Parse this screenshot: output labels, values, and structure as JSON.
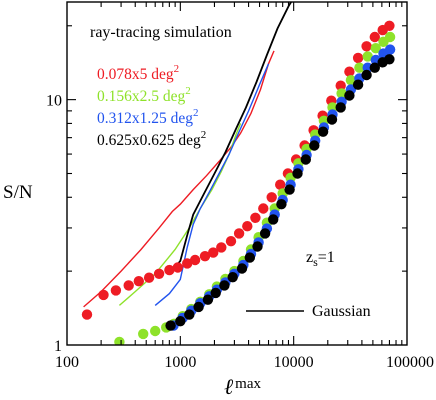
{
  "chart_data": {
    "type": "scatter",
    "title": "ray-tracing simulation",
    "ylabel": "S/N",
    "xlabel": {
      "main": "ℓ",
      "sub": "max"
    },
    "xscale": "log",
    "yscale": "log",
    "xlim": [
      100,
      100000
    ],
    "ylim": [
      1,
      25
    ],
    "x_tick_labels": [
      {
        "value": 100,
        "label": "100"
      },
      {
        "value": 1000,
        "label": "1000"
      },
      {
        "value": 10000,
        "label": "10000"
      },
      {
        "value": 100000,
        "label": "100000"
      }
    ],
    "y_tick_labels": [
      {
        "value": 1,
        "label": "1"
      },
      {
        "value": 10,
        "label": "10"
      }
    ],
    "grid": false,
    "legend_position": "top-left",
    "annotation": {
      "main": "z",
      "sub": "s",
      "rest": "=1"
    },
    "gaussian_legend_label": "Gaussian",
    "series": [
      {
        "name": "0.078x5 deg",
        "name_sup": "2",
        "color": "#ee1c24",
        "points": [
          [
            150,
            1.33
          ],
          [
            210,
            1.6
          ],
          [
            270,
            1.67
          ],
          [
            350,
            1.75
          ],
          [
            430,
            1.82
          ],
          [
            530,
            1.88
          ],
          [
            650,
            1.95
          ],
          [
            800,
            2.02
          ],
          [
            950,
            2.07
          ],
          [
            1150,
            2.15
          ],
          [
            1350,
            2.22
          ],
          [
            1650,
            2.3
          ],
          [
            1950,
            2.38
          ],
          [
            2300,
            2.5
          ],
          [
            2800,
            2.65
          ],
          [
            3300,
            2.85
          ],
          [
            3900,
            3.05
          ],
          [
            4600,
            3.3
          ],
          [
            5400,
            3.6
          ],
          [
            6400,
            4.0
          ],
          [
            7600,
            4.5
          ],
          [
            8900,
            5.0
          ],
          [
            10500,
            5.7
          ],
          [
            12500,
            6.5
          ],
          [
            15000,
            7.5
          ],
          [
            18000,
            8.6
          ],
          [
            21500,
            9.9
          ],
          [
            26000,
            11.4
          ],
          [
            31000,
            13.0
          ],
          [
            37000,
            14.8
          ],
          [
            44000,
            16.5
          ],
          [
            52000,
            18.0
          ],
          [
            61000,
            19.2
          ],
          [
            70000,
            20.0
          ]
        ],
        "gaussian": [
          [
            140,
            1.43
          ],
          [
            200,
            1.65
          ],
          [
            300,
            2.0
          ],
          [
            450,
            2.45
          ],
          [
            650,
            3.0
          ],
          [
            850,
            3.5
          ],
          [
            1000,
            3.75
          ],
          [
            1300,
            4.3
          ],
          [
            1700,
            4.9
          ],
          [
            2200,
            5.6
          ],
          [
            2800,
            6.4
          ],
          [
            3400,
            7.3
          ],
          [
            4200,
            8.8
          ],
          [
            5100,
            11.0
          ],
          [
            6000,
            14.0
          ],
          [
            6700,
            15.8
          ]
        ]
      },
      {
        "name": "0.156x2.5 deg",
        "name_sup": "2",
        "color": "#8ee22a",
        "points": [
          [
            290,
            1.03
          ],
          [
            470,
            1.11
          ],
          [
            600,
            1.14
          ],
          [
            750,
            1.18
          ],
          [
            880,
            1.22
          ],
          [
            1050,
            1.31
          ],
          [
            1250,
            1.4
          ],
          [
            1500,
            1.5
          ],
          [
            1800,
            1.61
          ],
          [
            2100,
            1.73
          ],
          [
            2500,
            1.86
          ],
          [
            3000,
            2.0
          ],
          [
            3600,
            2.2
          ],
          [
            4200,
            2.45
          ],
          [
            4900,
            2.75
          ],
          [
            5800,
            3.15
          ],
          [
            6800,
            3.6
          ],
          [
            8000,
            4.15
          ],
          [
            9400,
            4.8
          ],
          [
            11000,
            5.5
          ],
          [
            13000,
            6.3
          ],
          [
            15500,
            7.2
          ],
          [
            18500,
            8.2
          ],
          [
            22000,
            9.3
          ],
          [
            26500,
            10.6
          ],
          [
            32000,
            12.0
          ],
          [
            38000,
            13.5
          ],
          [
            45000,
            15.0
          ],
          [
            53000,
            16.2
          ],
          [
            62000,
            17.2
          ],
          [
            71000,
            18.0
          ]
        ],
        "gaussian": [
          [
            290,
            1.45
          ],
          [
            400,
            1.65
          ],
          [
            600,
            1.95
          ],
          [
            900,
            2.45
          ],
          [
            1200,
            3.0
          ],
          [
            1500,
            3.6
          ],
          [
            1900,
            4.3
          ],
          [
            2300,
            5.1
          ],
          [
            2700,
            6.0
          ],
          [
            3100,
            7.2
          ],
          [
            3400,
            8.0
          ]
        ]
      },
      {
        "name": "0.312x1.25 deg",
        "name_sup": "2",
        "color": "#2254ee",
        "points": [
          [
            870,
            1.2
          ],
          [
            1050,
            1.29
          ],
          [
            1250,
            1.38
          ],
          [
            1500,
            1.48
          ],
          [
            1800,
            1.58
          ],
          [
            2100,
            1.68
          ],
          [
            2500,
            1.8
          ],
          [
            3000,
            1.95
          ],
          [
            3600,
            2.12
          ],
          [
            4200,
            2.35
          ],
          [
            4900,
            2.62
          ],
          [
            5800,
            2.98
          ],
          [
            6800,
            3.4
          ],
          [
            8000,
            3.9
          ],
          [
            9400,
            4.5
          ],
          [
            11000,
            5.2
          ],
          [
            13000,
            5.95
          ],
          [
            15500,
            6.8
          ],
          [
            18500,
            7.7
          ],
          [
            22000,
            8.7
          ],
          [
            26500,
            9.8
          ],
          [
            32000,
            11.0
          ],
          [
            38000,
            12.2
          ],
          [
            45000,
            13.5
          ],
          [
            53000,
            14.5
          ],
          [
            62000,
            15.4
          ],
          [
            71000,
            16.0
          ]
        ],
        "gaussian": [
          [
            600,
            1.45
          ],
          [
            800,
            1.62
          ],
          [
            1000,
            1.85
          ],
          [
            1150,
            2.5
          ],
          [
            1300,
            3.1
          ],
          [
            1500,
            3.6
          ],
          [
            1800,
            4.2
          ],
          [
            2200,
            5.0
          ],
          [
            2700,
            6.0
          ],
          [
            3300,
            7.4
          ],
          [
            4000,
            9.0
          ],
          [
            5000,
            11.5
          ],
          [
            6000,
            14.0
          ]
        ]
      },
      {
        "name": "0.625x0.625 deg",
        "name_sup": "2",
        "color": "#000000",
        "points": [
          [
            820,
            1.2
          ],
          [
            1000,
            1.25
          ],
          [
            1200,
            1.33
          ],
          [
            1450,
            1.43
          ],
          [
            1750,
            1.53
          ],
          [
            2050,
            1.63
          ],
          [
            2450,
            1.75
          ],
          [
            2900,
            1.89
          ],
          [
            3500,
            2.05
          ],
          [
            4100,
            2.27
          ],
          [
            4800,
            2.52
          ],
          [
            5600,
            2.85
          ],
          [
            6600,
            3.25
          ],
          [
            7800,
            3.75
          ],
          [
            9200,
            4.3
          ],
          [
            10800,
            5.0
          ],
          [
            12800,
            5.7
          ],
          [
            15200,
            6.5
          ],
          [
            18200,
            7.4
          ],
          [
            21800,
            8.3
          ],
          [
            26000,
            9.3
          ],
          [
            31000,
            10.4
          ],
          [
            37000,
            11.5
          ],
          [
            44000,
            12.6
          ],
          [
            52000,
            13.5
          ],
          [
            61000,
            14.2
          ],
          [
            70000,
            14.6
          ]
        ],
        "gaussian": [
          [
            880,
            2.05
          ],
          [
            1000,
            2.2
          ],
          [
            1150,
            2.8
          ],
          [
            1300,
            3.4
          ],
          [
            1600,
            4.1
          ],
          [
            2000,
            5.0
          ],
          [
            2500,
            6.1
          ],
          [
            3100,
            7.6
          ],
          [
            3800,
            9.3
          ],
          [
            4700,
            11.8
          ],
          [
            5800,
            15.2
          ],
          [
            7200,
            19.5
          ],
          [
            9000,
            24.0
          ],
          [
            10500,
            27.0
          ]
        ]
      }
    ]
  }
}
